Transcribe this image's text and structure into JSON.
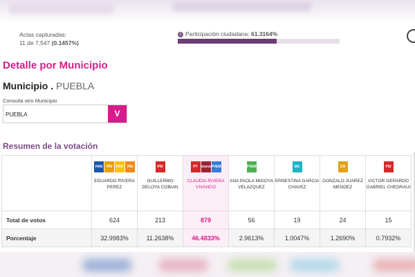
{
  "header": {
    "actas_label": "Actas capturadas:",
    "actas_count": "11 de 7,547",
    "actas_pct": "(0.1457%)",
    "participacion_label": "Participación ciudadana:",
    "participacion_value": "61.3164%",
    "participacion_fraction": 0.613
  },
  "detalle_title": "Detalle por Municipio",
  "municipio": {
    "label": "Municipio .",
    "value": "PUEBLA"
  },
  "consulta": {
    "label": "Consulta otro Municipio",
    "selected": "PUEBLA",
    "button": "V"
  },
  "resumen_title": "Resumen de la votación",
  "rows": {
    "total_label": "Total de votos",
    "pct_label": "Porcentaje"
  },
  "candidates": [
    {
      "name": "EDUARDO RIVERA PEREZ",
      "votes": "624",
      "pct": "32.9983%",
      "logos": [
        {
          "t": "PAN",
          "c": "#1a56b0"
        },
        {
          "t": "PRI",
          "c": "#e8a100"
        },
        {
          "t": "PRD",
          "c": "#f7c400"
        },
        {
          "t": "PSI",
          "c": "#f08a1b"
        }
      ]
    },
    {
      "name": "GUILLERMO DELOYA COBIAN",
      "votes": "213",
      "pct": "11.2638%",
      "logos": [
        {
          "t": "PRI",
          "c": "#d62828"
        }
      ]
    },
    {
      "name": "CLAUDIA RIVERA VIVANCO",
      "votes": "879",
      "pct": "46.4833%",
      "win": true,
      "logos": [
        {
          "t": "PT",
          "c": "#d62828"
        },
        {
          "t": "morena",
          "c": "#9b2335"
        },
        {
          "t": "PVEM",
          "c": "#3a7bd5"
        }
      ]
    },
    {
      "name": "ANA PAOLA MIGOYA VELAZQUEZ",
      "votes": "56",
      "pct": "2.9613%",
      "logos": [
        {
          "t": "PVEM",
          "c": "#4caf50"
        }
      ]
    },
    {
      "name": "ERNESTINA GARCIA CHAVEZ",
      "votes": "19",
      "pct": "1.0047%",
      "logos": [
        {
          "t": "MC",
          "c": "#1eb2c6"
        }
      ]
    },
    {
      "name": "GONZALO JUAREZ MENDEZ",
      "votes": "24",
      "pct": "1.2690%",
      "logos": [
        {
          "t": "CN",
          "c": "#e3a21a"
        }
      ]
    },
    {
      "name": "VICTOR GERARDO GABRIEL CHEDRAUI",
      "votes": "15",
      "pct": "0.7932%",
      "logos": [
        {
          "t": "PSI",
          "c": "#d62828"
        }
      ]
    }
  ]
}
